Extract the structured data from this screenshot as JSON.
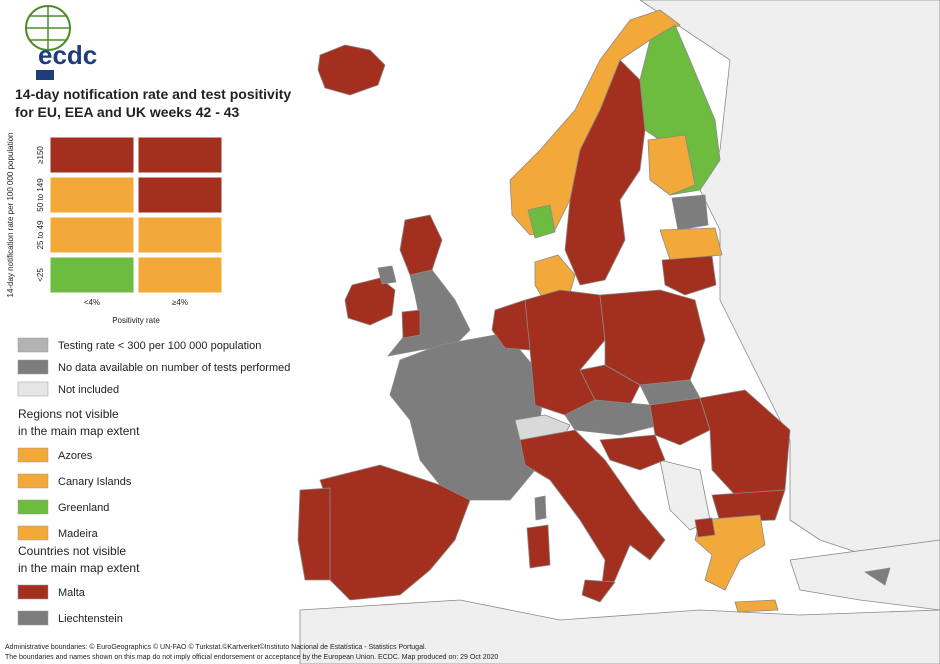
{
  "logo": "ecdc",
  "title": [
    "14-day notification rate and test positivity",
    "for EU, EEA and UK weeks 42 - 43"
  ],
  "matrix": {
    "y_label": "14-day notification rate per 100 000 population",
    "row_labels": [
      "≥150",
      "50 to 149",
      "25 to 49",
      "<25"
    ],
    "column_labels": [
      "<4%",
      "≥4%"
    ],
    "x_label": "Positivity rate",
    "cells": [
      [
        "#a3301f",
        "#a3301f"
      ],
      [
        "#f3a93a",
        "#a3301f"
      ],
      [
        "#f3a93a",
        "#f3a93a"
      ],
      [
        "#6dbb3f",
        "#f3a93a"
      ]
    ]
  },
  "legend": [
    {
      "label": "Testing rate < 300 per 100 000 population",
      "color": "#b3b3b3"
    },
    {
      "label": "No data available on number of tests performed",
      "color": "#7d7d7d"
    },
    {
      "label": "Not included",
      "color": "#e6e6e6"
    }
  ],
  "regions": {
    "heading": [
      "Regions not visible",
      "in the main map extent"
    ],
    "items": [
      {
        "label": "Azores",
        "color": "#f3a93a"
      },
      {
        "label": "Canary Islands",
        "color": "#f3a93a"
      },
      {
        "label": "Greenland",
        "color": "#6dbb3f"
      },
      {
        "label": "Madeira",
        "color": "#f3a93a"
      }
    ]
  },
  "countries": {
    "heading": [
      "Countries not visible",
      "in the main map extent"
    ],
    "items": [
      {
        "label": "Malta",
        "color": "#a3301f"
      },
      {
        "label": "Liechtenstein",
        "color": "#7d7d7d"
      }
    ]
  },
  "footer": [
    "Administrative boundaries: © EuroGeographics © UN-FAO © Turkstat.©Kartverket©Instituto Nacional de Estatística - Statistics Portugal.",
    "The boundaries and names shown on this map do not imply official endorsement or acceptance by the European Union. ECDC. Map produced on: 29 Oct 2020"
  ]
}
